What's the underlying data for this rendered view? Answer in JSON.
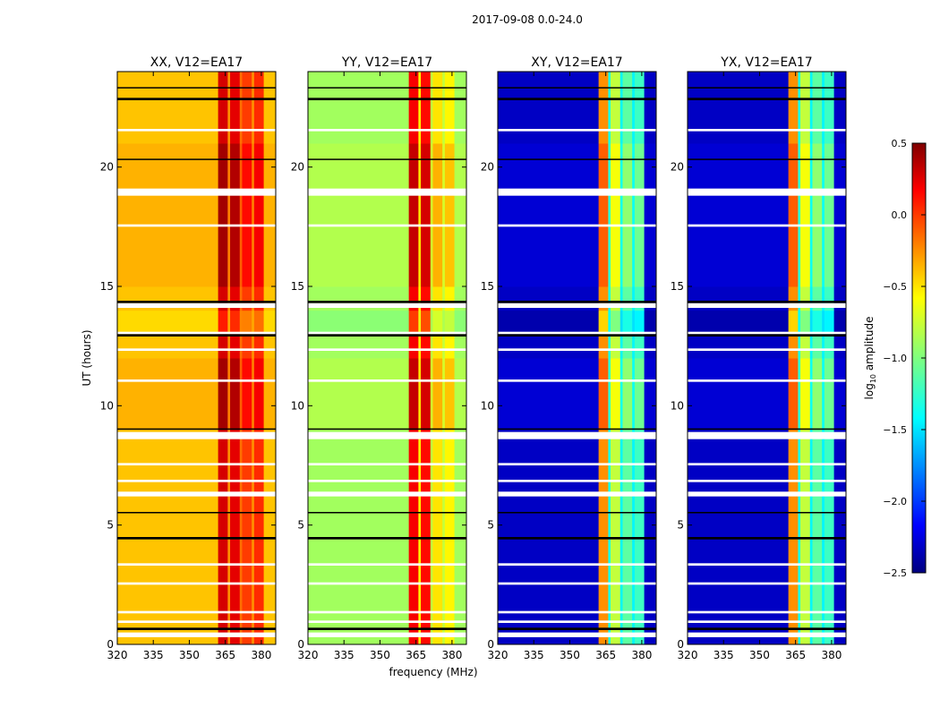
{
  "chart_data": {
    "type": "heatmap",
    "suptitle": "2017-09-08 0.0-24.0",
    "xlabel": "frequency (MHz)",
    "ylabel": "UT (hours)",
    "xlim": [
      320,
      386
    ],
    "ylim": [
      0,
      24
    ],
    "xticks": [
      "320",
      "335",
      "350",
      "365",
      "380"
    ],
    "xtick_values": [
      320,
      335,
      350,
      365,
      380
    ],
    "yticks": [
      "0",
      "5",
      "10",
      "15",
      "20"
    ],
    "ytick_values": [
      0,
      5,
      10,
      15,
      20
    ],
    "colorbar": {
      "label": "log10 amplitude",
      "label_main": "log",
      "label_sub": "10",
      "label_rest": " amplitude",
      "range": [
        -2.5,
        0.5
      ],
      "ticks": [
        "0.5",
        "0.0",
        "−0.5",
        "−1.0",
        "−1.5",
        "−2.0",
        "−2.5"
      ],
      "tick_values": [
        0.5,
        0,
        -0.5,
        -1,
        -1.5,
        -2,
        -2.5
      ],
      "colormap": "jet"
    },
    "freq_segments": [
      [
        320,
        362
      ],
      [
        362,
        366
      ],
      [
        366,
        367
      ],
      [
        367,
        371
      ],
      [
        371,
        372
      ],
      [
        372,
        376
      ],
      [
        376,
        377
      ],
      [
        377,
        381
      ],
      [
        381,
        386
      ]
    ],
    "time_boost": [
      {
        "range": [
          9,
          12
        ],
        "delta": 0.15
      },
      {
        "range": [
          15,
          21
        ],
        "delta": 0.15
      },
      {
        "range": [
          13,
          14
        ],
        "delta": -0.2
      }
    ],
    "flagged_white": [
      [
        0.3,
        0.5
      ],
      [
        0.9,
        1.0
      ],
      [
        1.3,
        1.4
      ],
      [
        2.5,
        2.6
      ],
      [
        3.3,
        3.4
      ],
      [
        6.2,
        6.4
      ],
      [
        6.8,
        6.9
      ],
      [
        7.5,
        7.6
      ],
      [
        8.6,
        8.9
      ],
      [
        11.0,
        11.1
      ],
      [
        12.3,
        12.4
      ],
      [
        13.0,
        13.1
      ],
      [
        14.1,
        14.3
      ],
      [
        17.5,
        17.6
      ],
      [
        18.8,
        19.1
      ],
      [
        21.5,
        21.6
      ]
    ],
    "flagged_black": [
      [
        0.6,
        0.7
      ],
      [
        4.4,
        4.5
      ],
      [
        5.5,
        5.55
      ],
      [
        9.0,
        9.05
      ],
      [
        12.9,
        13.0
      ],
      [
        14.3,
        14.4
      ],
      [
        20.3,
        20.35
      ],
      [
        22.8,
        22.9
      ],
      [
        23.3,
        23.35
      ]
    ],
    "panels": [
      {
        "title": "XX, V12=EA17",
        "values": [
          -0.45,
          0.25,
          -0.3,
          0.2,
          -0.2,
          -0.05,
          -0.3,
          0.0,
          -0.45
        ]
      },
      {
        "title": "YY, V12=EA17",
        "values": [
          -0.9,
          0.15,
          -0.6,
          0.1,
          -0.8,
          -0.55,
          -0.8,
          -0.6,
          -0.9
        ]
      },
      {
        "title": "XY, V12=EA17",
        "values": [
          -2.3,
          -0.3,
          -1.3,
          -0.8,
          -1.4,
          -1.1,
          -1.4,
          -1.2,
          -2.3
        ]
      },
      {
        "title": "YX, V12=EA17",
        "values": [
          -2.3,
          -0.3,
          -1.3,
          -0.8,
          -1.4,
          -1.1,
          -1.4,
          -1.2,
          -2.3
        ]
      }
    ]
  }
}
